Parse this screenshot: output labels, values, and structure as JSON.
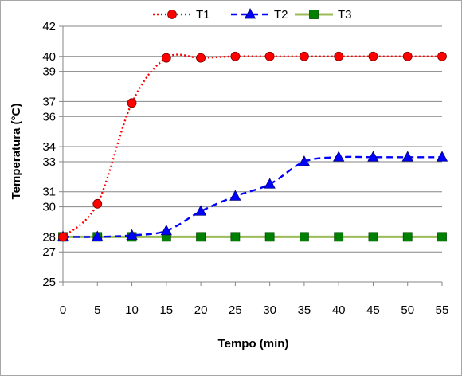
{
  "chart_data": {
    "type": "line",
    "title": "",
    "xlabel": "Tempo (min)",
    "ylabel": "Temperatura (°C)",
    "x": [
      0,
      5,
      10,
      15,
      20,
      25,
      30,
      35,
      40,
      45,
      50,
      55
    ],
    "x_ticks": [
      "0",
      "5",
      "10",
      "15",
      "20",
      "25",
      "30",
      "35",
      "40",
      "45",
      "50",
      "55"
    ],
    "xlim": [
      0,
      55
    ],
    "ylim": [
      25,
      42
    ],
    "y_ticks": [
      25,
      27,
      28,
      30,
      31,
      33,
      34,
      36,
      37,
      39,
      40,
      42
    ],
    "y_tick_labels": [
      "25",
      "27",
      "28",
      "30",
      "31",
      "33",
      "34",
      "36",
      "37",
      "39",
      "40",
      "42"
    ],
    "grid": "horizontal",
    "legend_position": "top",
    "series": [
      {
        "name": "T1",
        "color": "#ff0000",
        "marker": "circle",
        "line_style": "dotted",
        "values": [
          28.0,
          30.2,
          36.9,
          39.9,
          39.9,
          40.0,
          40.0,
          40.0,
          40.0,
          40.0,
          40.0,
          40.0
        ]
      },
      {
        "name": "T2",
        "color": "#0000ff",
        "marker": "triangle",
        "line_style": "dashed",
        "values": [
          28.0,
          28.0,
          28.1,
          28.4,
          29.7,
          30.7,
          31.5,
          33.0,
          33.3,
          33.3,
          33.3,
          33.3
        ]
      },
      {
        "name": "T3",
        "color": "#9bbb59",
        "marker": "square",
        "marker_color": "#008000",
        "line_style": "solid",
        "values": [
          28.0,
          28.0,
          28.0,
          28.0,
          28.0,
          28.0,
          28.0,
          28.0,
          28.0,
          28.0,
          28.0,
          28.0
        ]
      }
    ]
  }
}
